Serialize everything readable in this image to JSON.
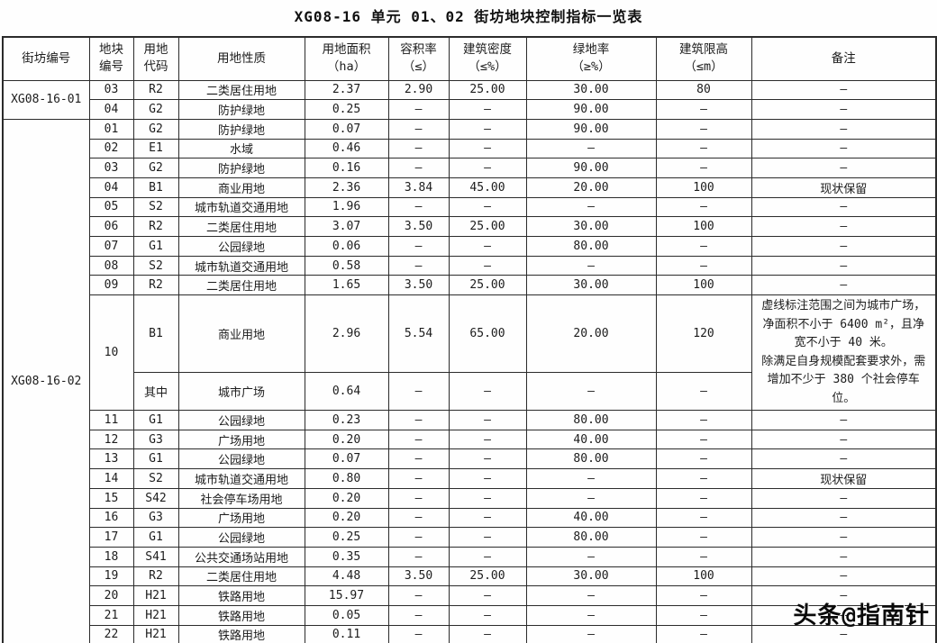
{
  "title": "XG08-16 单元 01、02 街坊地块控制指标一览表",
  "watermark": "头条@指南针",
  "table": {
    "headers": [
      {
        "lines": [
          "街坊编号"
        ]
      },
      {
        "lines": [
          "地块",
          "编号"
        ]
      },
      {
        "lines": [
          "用地",
          "代码"
        ]
      },
      {
        "lines": [
          "用地性质"
        ]
      },
      {
        "lines": [
          "用地面积",
          "（ha）"
        ]
      },
      {
        "lines": [
          "容积率",
          "（≤）"
        ]
      },
      {
        "lines": [
          "建筑密度",
          "（≤%）"
        ]
      },
      {
        "lines": [
          "绿地率",
          "（≥%）"
        ]
      },
      {
        "lines": [
          "建筑限高",
          "（≤m）"
        ]
      },
      {
        "lines": [
          "备注"
        ]
      }
    ],
    "sections": [
      {
        "block_id": "XG08-16-01",
        "rows": [
          {
            "plot": "03",
            "code": "R2",
            "use": "二类居住用地",
            "area": "2.37",
            "far": "2.90",
            "density": "25.00",
            "green": "30.00",
            "height": "80",
            "remark": "–"
          },
          {
            "plot": "04",
            "code": "G2",
            "use": "防护绿地",
            "area": "0.25",
            "far": "–",
            "density": "–",
            "green": "90.00",
            "height": "–",
            "remark": "–"
          }
        ]
      },
      {
        "block_id": "XG08-16-02",
        "rows": [
          {
            "plot": "01",
            "code": "G2",
            "use": "防护绿地",
            "area": "0.07",
            "far": "–",
            "density": "–",
            "green": "90.00",
            "height": "–",
            "remark": "–"
          },
          {
            "plot": "02",
            "code": "E1",
            "use": "水域",
            "area": "0.46",
            "far": "–",
            "density": "–",
            "green": "–",
            "height": "–",
            "remark": "–"
          },
          {
            "plot": "03",
            "code": "G2",
            "use": "防护绿地",
            "area": "0.16",
            "far": "–",
            "density": "–",
            "green": "90.00",
            "height": "–",
            "remark": "–"
          },
          {
            "plot": "04",
            "code": "B1",
            "use": "商业用地",
            "area": "2.36",
            "far": "3.84",
            "density": "45.00",
            "green": "20.00",
            "height": "100",
            "remark": "现状保留"
          },
          {
            "plot": "05",
            "code": "S2",
            "use": "城市轨道交通用地",
            "area": "1.96",
            "far": "–",
            "density": "–",
            "green": "–",
            "height": "–",
            "remark": "–"
          },
          {
            "plot": "06",
            "code": "R2",
            "use": "二类居住用地",
            "area": "3.07",
            "far": "3.50",
            "density": "25.00",
            "green": "30.00",
            "height": "100",
            "remark": "–"
          },
          {
            "plot": "07",
            "code": "G1",
            "use": "公园绿地",
            "area": "0.06",
            "far": "–",
            "density": "–",
            "green": "80.00",
            "height": "–",
            "remark": "–"
          },
          {
            "plot": "08",
            "code": "S2",
            "use": "城市轨道交通用地",
            "area": "0.58",
            "far": "–",
            "density": "–",
            "green": "–",
            "height": "–",
            "remark": "–"
          },
          {
            "plot": "09",
            "code": "R2",
            "use": "二类居住用地",
            "area": "1.65",
            "far": "3.50",
            "density": "25.00",
            "green": "30.00",
            "height": "100",
            "remark": "–"
          },
          {
            "plot": "10",
            "plot_rowspan": 2,
            "code": "B1",
            "use": "商业用地",
            "area": "2.96",
            "far": "5.54",
            "density": "65.00",
            "green": "20.00",
            "height": "120",
            "remark": [
              "虚线标注范围之间为城市广场，净面积不小于 6400 m²，且净宽不小于 40 米。",
              "除满足自身规模配套要求外，需增加不少于 380 个社会停车位。"
            ],
            "remark_rowspan": 2
          },
          {
            "plot": null,
            "code": "其中",
            "use": "城市广场",
            "area": "0.64",
            "far": "–",
            "density": "–",
            "green": "–",
            "height": "–",
            "remark": null
          },
          {
            "plot": "11",
            "code": "G1",
            "use": "公园绿地",
            "area": "0.23",
            "far": "–",
            "density": "–",
            "green": "80.00",
            "height": "–",
            "remark": "–"
          },
          {
            "plot": "12",
            "code": "G3",
            "use": "广场用地",
            "area": "0.20",
            "far": "–",
            "density": "–",
            "green": "40.00",
            "height": "–",
            "remark": "–"
          },
          {
            "plot": "13",
            "code": "G1",
            "use": "公园绿地",
            "area": "0.07",
            "far": "–",
            "density": "–",
            "green": "80.00",
            "height": "–",
            "remark": "–"
          },
          {
            "plot": "14",
            "code": "S2",
            "use": "城市轨道交通用地",
            "area": "0.80",
            "far": "–",
            "density": "–",
            "green": "–",
            "height": "–",
            "remark": "现状保留"
          },
          {
            "plot": "15",
            "code": "S42",
            "use": "社会停车场用地",
            "area": "0.20",
            "far": "–",
            "density": "–",
            "green": "–",
            "height": "–",
            "remark": "–"
          },
          {
            "plot": "16",
            "code": "G3",
            "use": "广场用地",
            "area": "0.20",
            "far": "–",
            "density": "–",
            "green": "40.00",
            "height": "–",
            "remark": "–"
          },
          {
            "plot": "17",
            "code": "G1",
            "use": "公园绿地",
            "area": "0.25",
            "far": "–",
            "density": "–",
            "green": "80.00",
            "height": "–",
            "remark": "–"
          },
          {
            "plot": "18",
            "code": "S41",
            "use": "公共交通场站用地",
            "area": "0.35",
            "far": "–",
            "density": "–",
            "green": "–",
            "height": "–",
            "remark": "–"
          },
          {
            "plot": "19",
            "code": "R2",
            "use": "二类居住用地",
            "area": "4.48",
            "far": "3.50",
            "density": "25.00",
            "green": "30.00",
            "height": "100",
            "remark": "–"
          },
          {
            "plot": "20",
            "code": "H21",
            "use": "铁路用地",
            "area": "15.97",
            "far": "–",
            "density": "–",
            "green": "–",
            "height": "–",
            "remark": "–"
          },
          {
            "plot": "21",
            "code": "H21",
            "use": "铁路用地",
            "area": "0.05",
            "far": "–",
            "density": "–",
            "green": "–",
            "height": "–",
            "remark": "–"
          },
          {
            "plot": "22",
            "code": "H21",
            "use": "铁路用地",
            "area": "0.11",
            "far": "–",
            "density": "–",
            "green": "–",
            "height": "–",
            "remark": "–"
          }
        ]
      }
    ]
  }
}
